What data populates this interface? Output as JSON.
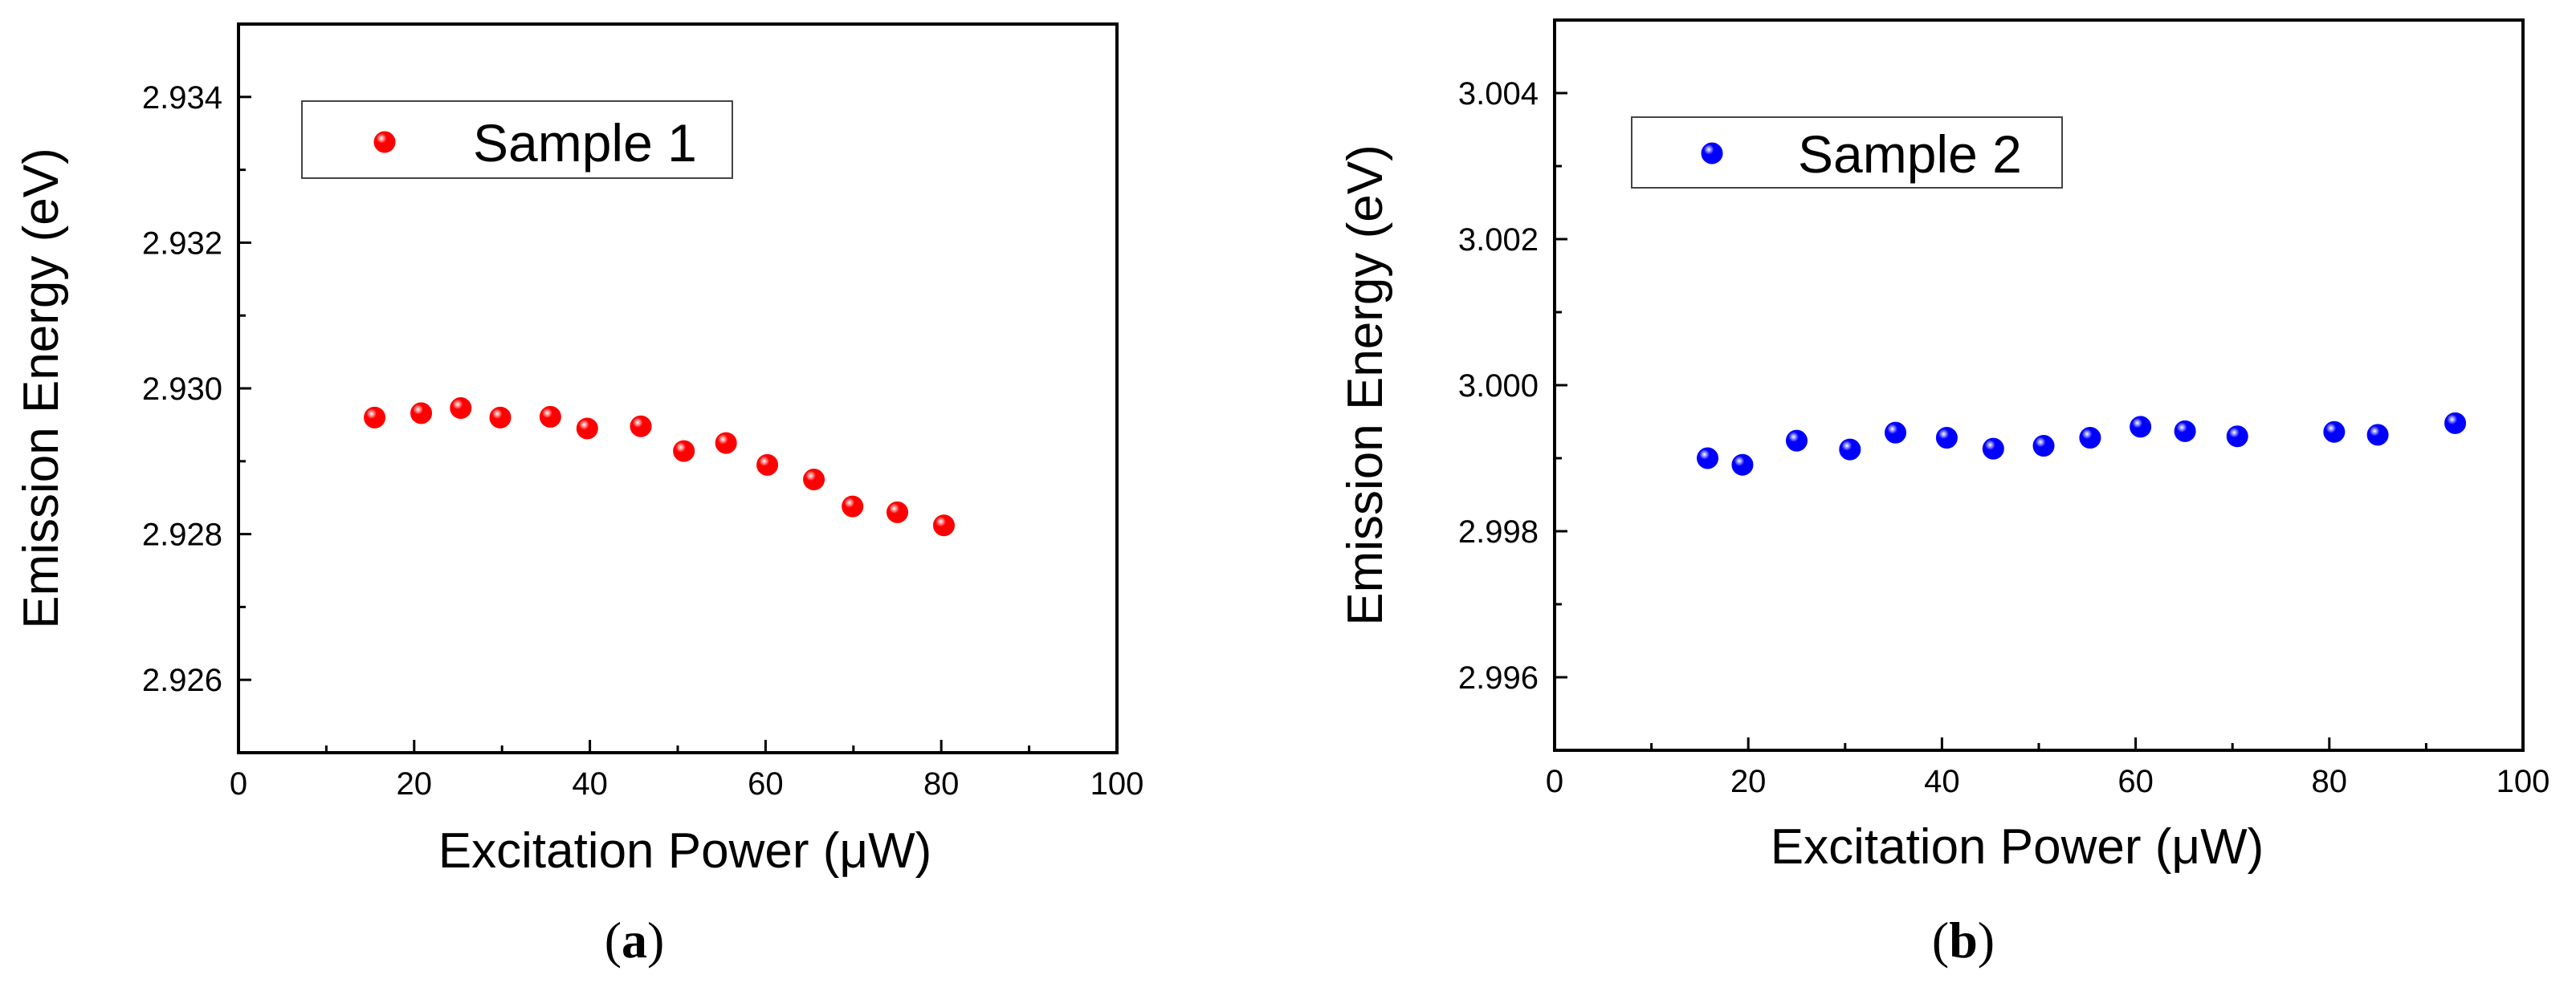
{
  "chart_data": [
    {
      "type": "scatter",
      "panel_label": "a",
      "xlabel": "Excitation Power (μW)",
      "ylabel": "Emission Energy (eV)",
      "xlim": [
        0,
        100
      ],
      "ylim": [
        2.925,
        2.935
      ],
      "xticks": [
        0,
        20,
        40,
        60,
        80,
        100
      ],
      "xtick_labels": [
        "0",
        "20",
        "40",
        "60",
        "80",
        "100"
      ],
      "yticks": [
        2.926,
        2.928,
        2.93,
        2.932,
        2.934
      ],
      "ytick_labels": [
        "2.926",
        "2.928",
        "2.930",
        "2.932",
        "2.934"
      ],
      "grid": false,
      "legend": "top-left",
      "series": [
        {
          "name": "Sample 1",
          "color": "#ff0000",
          "x": [
            15.5,
            20.8,
            25.3,
            29.8,
            35.5,
            39.7,
            45.8,
            50.7,
            55.5,
            60.2,
            65.5,
            69.9,
            75.0,
            80.3
          ],
          "y": [
            2.9296,
            2.92966,
            2.92973,
            2.9296,
            2.92961,
            2.92945,
            2.92948,
            2.92914,
            2.92925,
            2.92895,
            2.92875,
            2.92838,
            2.9283,
            2.92812
          ]
        }
      ]
    },
    {
      "type": "scatter",
      "panel_label": "b",
      "xlabel": "Excitation Power (μW)",
      "ylabel": "Emission Energy (eV)",
      "xlim": [
        0,
        100
      ],
      "ylim": [
        2.995,
        3.005
      ],
      "xticks": [
        0,
        20,
        40,
        60,
        80,
        100
      ],
      "xtick_labels": [
        "0",
        "20",
        "40",
        "60",
        "80",
        "100"
      ],
      "yticks": [
        2.996,
        2.998,
        3.0,
        3.002,
        3.004
      ],
      "ytick_labels": [
        "2.996",
        "2.998",
        "3.000",
        "3.002",
        "3.004"
      ],
      "grid": false,
      "legend": "top-left",
      "series": [
        {
          "name": "Sample 2",
          "color": "#0000ff",
          "x": [
            15.8,
            19.4,
            25.0,
            30.5,
            35.2,
            40.5,
            45.3,
            50.5,
            55.3,
            60.5,
            65.1,
            70.5,
            80.5,
            85.0,
            93.0
          ],
          "y": [
            2.999,
            2.99891,
            2.99924,
            2.99912,
            2.99935,
            2.99928,
            2.99913,
            2.99917,
            2.99928,
            2.99943,
            2.99937,
            2.9993,
            2.99936,
            2.99932,
            2.99948
          ]
        }
      ]
    }
  ]
}
